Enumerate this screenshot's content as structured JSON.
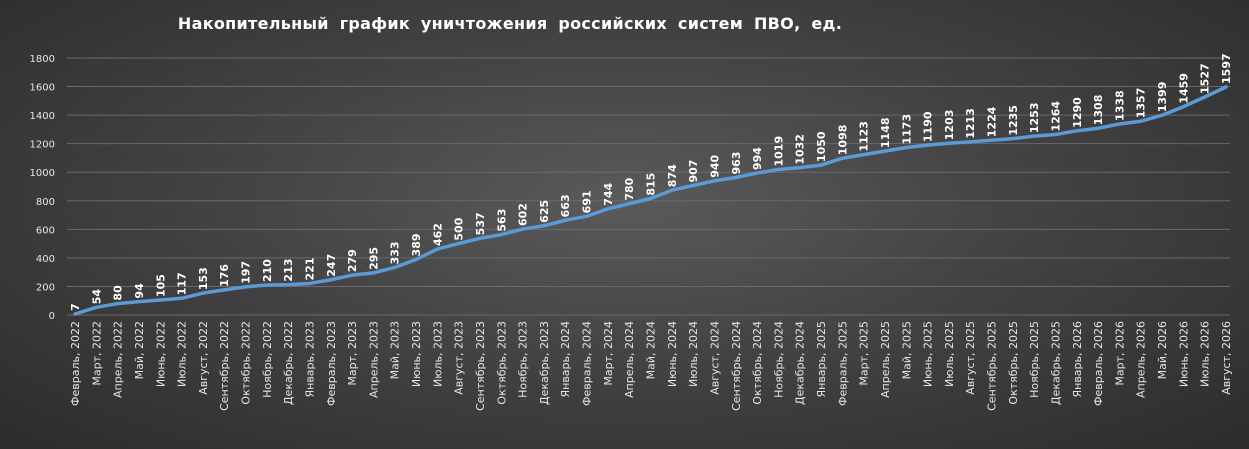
{
  "chart_data": {
    "type": "line",
    "title": "Накопительный график уничтожения российских систем ПВО, ед.",
    "xlabel": "",
    "ylabel": "",
    "ylim": [
      0,
      1800
    ],
    "yticks": [
      0,
      200,
      400,
      600,
      800,
      1000,
      1200,
      1400,
      1600,
      1800
    ],
    "grid": true,
    "legend": "none",
    "line_color": "#5b9bd5",
    "categories": [
      "Февраль, 2022",
      "Март, 2022",
      "Апрель, 2022",
      "Май, 2022",
      "Июнь, 2022",
      "Июль, 2022",
      "Август, 2022",
      "Сентябрь, 2022",
      "Октябрь, 2022",
      "Ноябрь, 2022",
      "Декабрь, 2022",
      "Январь, 2023",
      "Февраль, 2023",
      "Март, 2023",
      "Апрель, 2023",
      "Май, 2023",
      "Июнь, 2023",
      "Июль, 2023",
      "Август, 2023",
      "Сентябрь, 2023",
      "Октябрь, 2023",
      "Ноябрь, 2023",
      "Декабрь, 2023",
      "Январь, 2024",
      "Февраль, 2024",
      "Март, 2024",
      "Апрель, 2024",
      "Май, 2024",
      "Июнь, 2024",
      "Июль, 2024",
      "Август, 2024",
      "Сентябрь, 2024",
      "Октябрь, 2024",
      "Ноябрь, 2024",
      "Декабрь, 2024",
      "Январь, 2025",
      "Февраль, 2025",
      "Март, 2025",
      "Апрель, 2025",
      "Май, 2025",
      "Июнь, 2025",
      "Июль, 2025",
      "Август, 2025",
      "Сентябрь, 2025",
      "Октябрь, 2025",
      "Ноябрь, 2025",
      "Декабрь, 2025",
      "Январь, 2026",
      "Февраль, 2026",
      "Март, 2026",
      "Апрель, 2026",
      "Май, 2026",
      "Июнь, 2026",
      "Июль, 2026",
      "Август, 2026"
    ],
    "values": [
      7,
      54,
      80,
      94,
      105,
      117,
      153,
      176,
      197,
      210,
      213,
      221,
      247,
      279,
      295,
      333,
      389,
      462,
      500,
      537,
      563,
      602,
      625,
      663,
      691,
      744,
      780,
      815,
      874,
      907,
      940,
      963,
      994,
      1019,
      1032,
      1050,
      1098,
      1123,
      1148,
      1173,
      1190,
      1203,
      1213,
      1224,
      1235,
      1253,
      1264,
      1290,
      1308,
      1338,
      1357,
      1399,
      1459,
      1527,
      1597
    ]
  }
}
